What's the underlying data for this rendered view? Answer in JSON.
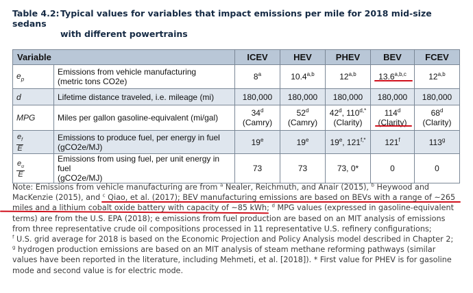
{
  "title": {
    "label": "Table 4.2:",
    "line1": "Typical values for variables that impact emissions per mile for 2018 mid-size sedans",
    "line2": "with different powertrains"
  },
  "table": {
    "headers": [
      "Variable",
      "ICEV",
      "HEV",
      "PHEV",
      "BEV",
      "FCEV"
    ],
    "rows": [
      {
        "symbol": "ep",
        "symbol_main": "e",
        "symbol_sub": "p",
        "desc_line1": "Emissions from vehicle manufacturing",
        "desc_line2": "(metric tons CO2e)",
        "icev": {
          "l1": "8",
          "s1": "a"
        },
        "hev": {
          "l1": "10.4",
          "s1": "a,b"
        },
        "phev": {
          "l1": "12",
          "s1": "a,b"
        },
        "bev": {
          "l1": "13.6",
          "s1": "a,b,c"
        },
        "fcev": {
          "l1": "12",
          "s1": "a,b"
        }
      },
      {
        "symbol": "d",
        "desc_line1": "Lifetime distance traveled, i.e. mileage (mi)",
        "icev": {
          "l1": "180,000"
        },
        "hev": {
          "l1": "180,000"
        },
        "phev": {
          "l1": "180,000"
        },
        "bev": {
          "l1": "180,000"
        },
        "fcev": {
          "l1": "180,000"
        }
      },
      {
        "symbol": "MPG",
        "desc_line1": "Miles per gallon gasoline-equivalent (mi/gal)",
        "icev": {
          "l1": "34",
          "s1": "d",
          "l2": "(Camry)"
        },
        "hev": {
          "l1": "52",
          "s1": "d",
          "l2": "(Camry)"
        },
        "phev": {
          "l1a": "42",
          "s1a": "d",
          "l1b": ", 110",
          "s1b": "d,*",
          "l2": "(Clarity)"
        },
        "bev": {
          "l1": "114",
          "s1": "d",
          "l2": "(Clarity)"
        },
        "fcev": {
          "l1": "68",
          "s1": "d",
          "l2": "(Clarity)"
        }
      },
      {
        "symbol_num": "ef",
        "symbol_num_main": "e",
        "symbol_num_sub": "f",
        "symbol_den": "E",
        "desc_line1": "Emissions to produce fuel, per energy in fuel",
        "desc_line2": "(gCO2e/MJ)",
        "icev": {
          "l1": "19",
          "s1": "e"
        },
        "hev": {
          "l1": "19",
          "s1": "e"
        },
        "phev": {
          "l1a": "19",
          "s1a": "e",
          "l1b": ", 121",
          "s1b": "f,*"
        },
        "bev": {
          "l1": "121",
          "s1": "f"
        },
        "fcev": {
          "l1": "113",
          "s1": "g"
        }
      },
      {
        "symbol_num": "eu",
        "symbol_num_main": "e",
        "symbol_num_sub": "u",
        "symbol_den": "E",
        "desc_line1": "Emissions from using fuel, per unit energy in fuel",
        "desc_line2": "(gCO2e/MJ)",
        "icev": {
          "l1": "73"
        },
        "hev": {
          "l1": "73"
        },
        "phev": {
          "l1": "73, 0*"
        },
        "bev": {
          "l1": "0"
        },
        "fcev": {
          "l1": "0"
        }
      }
    ]
  },
  "note": {
    "l1a": "Note: Emissions from vehicle manufacturing are from ",
    "l1s1": "a",
    "l1b": " Nealer, Reichmuth, and Anair (2015), ",
    "l1s2": "b",
    "l1c": " Heywood and",
    "l2a": "MacKenzie (2015), and ",
    "l2s1": "c",
    "l2b": " Qiao, et al. (2017); BEV manufacturing emissions are based on BEVs with a range of ~265",
    "l3a": "miles and a lithium cobalt oxide battery with capacity of ~85 kWh; ",
    "l3s1": "d",
    "l3b": " MPG values (expressed in gasoline-equivalent",
    "l4": "terms) are from the U.S. EPA (2018); e emissions from fuel production are based on an MIT analysis of emissions",
    "l5": "from three representative crude oil compositions processed in 11 representative U.S. refinery configurations;",
    "l6s1": "f",
    "l6": " U.S. grid average for 2018 is based on the Economic Projection and Policy Analysis model described in Chapter 2;",
    "l7s1": "g",
    "l7": " hydrogen production emissions are based on an MIT analysis of steam methane reforming pathways (similar",
    "l8": "values have been reported in the literature, including Mehmeti, et al. [2018]). * First value for PHEV is for gasoline",
    "l9": "mode and second value is for electric mode."
  },
  "colors": {
    "header_bg": "#b9c7d7",
    "shaded_row_bg": "#dfe6ee",
    "title_color": "#152a44",
    "underline_red": "#d0101c"
  }
}
